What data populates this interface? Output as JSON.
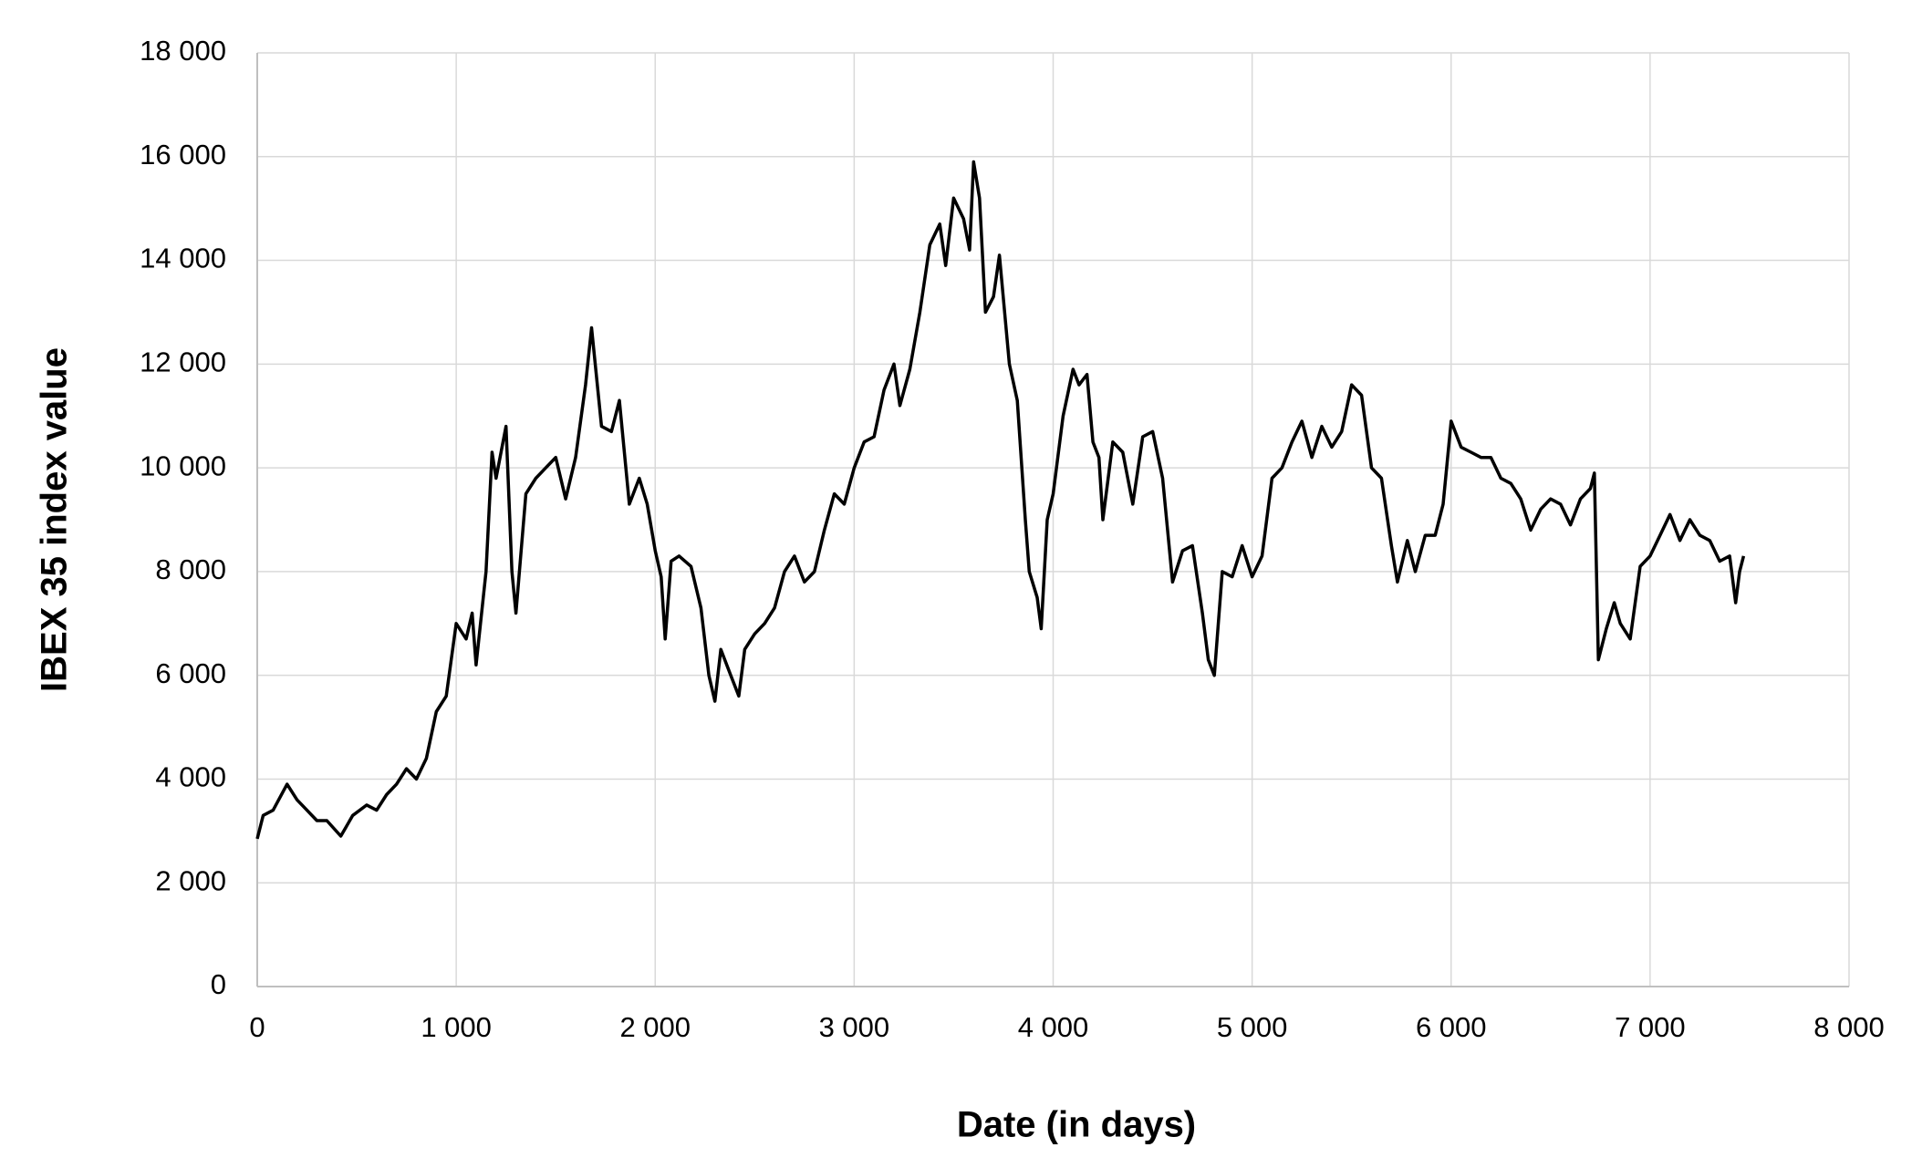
{
  "chart_data": {
    "type": "line",
    "xlabel": "Date (in days)",
    "ylabel": "IBEX 35 index value",
    "x": [
      0,
      30,
      80,
      150,
      200,
      250,
      300,
      350,
      420,
      480,
      550,
      600,
      650,
      700,
      750,
      800,
      850,
      900,
      950,
      1000,
      1050,
      1080,
      1100,
      1150,
      1180,
      1200,
      1250,
      1280,
      1300,
      1350,
      1400,
      1450,
      1500,
      1550,
      1600,
      1650,
      1680,
      1730,
      1780,
      1820,
      1870,
      1920,
      1960,
      2000,
      2030,
      2050,
      2080,
      2120,
      2180,
      2230,
      2270,
      2300,
      2330,
      2380,
      2420,
      2450,
      2500,
      2550,
      2600,
      2650,
      2700,
      2750,
      2800,
      2850,
      2900,
      2950,
      3000,
      3050,
      3100,
      3150,
      3200,
      3230,
      3280,
      3330,
      3380,
      3430,
      3460,
      3500,
      3550,
      3580,
      3600,
      3630,
      3660,
      3700,
      3730,
      3780,
      3820,
      3860,
      3880,
      3920,
      3940,
      3970,
      4000,
      4050,
      4100,
      4130,
      4170,
      4200,
      4230,
      4250,
      4300,
      4350,
      4400,
      4450,
      4500,
      4550,
      4600,
      4650,
      4700,
      4750,
      4780,
      4810,
      4850,
      4900,
      4950,
      5000,
      5050,
      5100,
      5150,
      5200,
      5250,
      5300,
      5350,
      5400,
      5450,
      5500,
      5550,
      5600,
      5650,
      5700,
      5730,
      5780,
      5820,
      5870,
      5920,
      5960,
      6000,
      6050,
      6100,
      6150,
      6200,
      6250,
      6300,
      6350,
      6400,
      6450,
      6500,
      6550,
      6600,
      6650,
      6700,
      6720,
      6740,
      6780,
      6820,
      6850,
      6900,
      6950,
      7000,
      7050,
      7100,
      7150,
      7200,
      7250,
      7300,
      7350,
      7400,
      7430,
      7450,
      7470
    ],
    "series": [
      {
        "color": "#000000",
        "values": [
          2850,
          3300,
          3400,
          3900,
          3600,
          3400,
          3200,
          3200,
          2900,
          3300,
          3500,
          3400,
          3700,
          3900,
          4200,
          4000,
          4400,
          5300,
          5600,
          7000,
          6700,
          7200,
          6200,
          8000,
          10300,
          9800,
          10800,
          8000,
          7200,
          9500,
          9800,
          10000,
          10200,
          9400,
          10200,
          11600,
          12700,
          10800,
          10700,
          11300,
          9300,
          9800,
          9300,
          8400,
          7900,
          6700,
          8200,
          8300,
          8100,
          7300,
          6000,
          5500,
          6500,
          6000,
          5600,
          6500,
          6800,
          7000,
          7300,
          8000,
          8300,
          7800,
          8000,
          8800,
          9500,
          9300,
          10000,
          10500,
          10600,
          11500,
          12000,
          11200,
          11900,
          13000,
          14300,
          14700,
          13900,
          15200,
          14800,
          14200,
          15900,
          15200,
          13000,
          13300,
          14100,
          12000,
          11300,
          9000,
          8000,
          7500,
          6900,
          9000,
          9500,
          11000,
          11900,
          11600,
          11800,
          10500,
          10200,
          9000,
          10500,
          10300,
          9300,
          10600,
          10700,
          9800,
          7800,
          8400,
          8500,
          7200,
          6300,
          6000,
          8000,
          7900,
          8500,
          7900,
          8300,
          9800,
          10000,
          10500,
          10900,
          10200,
          10800,
          10400,
          10700,
          11600,
          11400,
          10000,
          9800,
          8500,
          7800,
          8600,
          8000,
          8700,
          8700,
          9300,
          10900,
          10400,
          10300,
          10200,
          10200,
          9800,
          9700,
          9400,
          8800,
          9200,
          9400,
          9300,
          8900,
          9400,
          9600,
          9900,
          6300,
          6900,
          7400,
          7000,
          6700,
          8100,
          8300,
          8700,
          9100,
          8600,
          9000,
          8700,
          8600,
          8200,
          8300,
          7400,
          8000,
          8300
        ]
      }
    ],
    "xlim": [
      0,
      8000
    ],
    "xticks": [
      0,
      {
        "value": 1000,
        "label": "1 000"
      },
      {
        "value": 2000,
        "label": "2 000"
      },
      {
        "value": 3000,
        "label": "3 000"
      },
      {
        "value": 4000,
        "label": "4 000"
      },
      {
        "value": 5000,
        "label": "5 000"
      },
      {
        "value": 6000,
        "label": "6 000"
      },
      {
        "value": 7000,
        "label": "7 000"
      },
      {
        "value": 8000,
        "label": "8 000"
      }
    ],
    "ylim": [
      0,
      18000
    ],
    "yticks": [
      0,
      {
        "value": 2000,
        "label": "2 000"
      },
      {
        "value": 4000,
        "label": "4 000"
      },
      {
        "value": 6000,
        "label": "6 000"
      },
      {
        "value": 8000,
        "label": "8 000"
      },
      {
        "value": 10000,
        "label": "10 000"
      },
      {
        "value": 12000,
        "label": "12 000"
      },
      {
        "value": 14000,
        "label": "14 000"
      },
      {
        "value": 16000,
        "label": "16 000"
      },
      {
        "value": 18000,
        "label": "18 000"
      }
    ],
    "grid": true
  }
}
